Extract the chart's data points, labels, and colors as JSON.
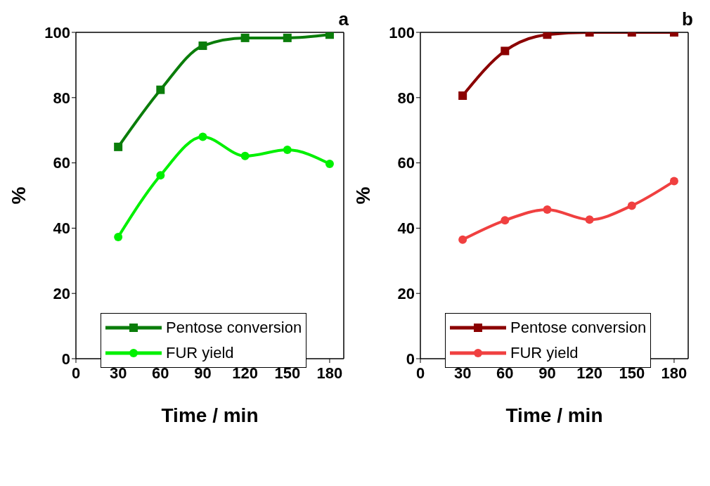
{
  "chart_data": [
    {
      "type": "line",
      "title": "a",
      "xlabel": "Time / min",
      "ylabel": "%",
      "x": [
        30,
        60,
        90,
        120,
        150,
        180
      ],
      "xlim": [
        0,
        190
      ],
      "xticks": [
        0,
        30,
        60,
        90,
        120,
        150,
        180
      ],
      "ylim": [
        0,
        100
      ],
      "yticks": [
        0,
        20,
        40,
        60,
        80,
        100
      ],
      "grid": false,
      "legend": "bottom left",
      "series": [
        {
          "name": "Pentose conversion",
          "color": "#0a7d0a",
          "marker": "square",
          "values": [
            64.9,
            82.4,
            95.9,
            98.3,
            98.3,
            99.3
          ]
        },
        {
          "name": "FUR yield",
          "color": "#00f000",
          "marker": "circle",
          "values": [
            37.3,
            56.2,
            68.0,
            62.1,
            64.0,
            59.7
          ]
        }
      ]
    },
    {
      "type": "line",
      "title": "b",
      "xlabel": "Time / min",
      "ylabel": "%",
      "x": [
        30,
        60,
        90,
        120,
        150,
        180
      ],
      "xlim": [
        0,
        190
      ],
      "xticks": [
        0,
        30,
        60,
        90,
        120,
        150,
        180
      ],
      "ylim": [
        0,
        100
      ],
      "yticks": [
        0,
        20,
        40,
        60,
        80,
        100
      ],
      "grid": false,
      "legend": "bottom left",
      "series": [
        {
          "name": "Pentose conversion",
          "color": "#8b0000",
          "marker": "square",
          "values": [
            80.6,
            94.3,
            99.3,
            100,
            100,
            100
          ]
        },
        {
          "name": "FUR yield",
          "color": "#f04040",
          "marker": "circle",
          "values": [
            36.5,
            42.4,
            45.7,
            42.6,
            46.9,
            54.4
          ]
        }
      ]
    }
  ]
}
